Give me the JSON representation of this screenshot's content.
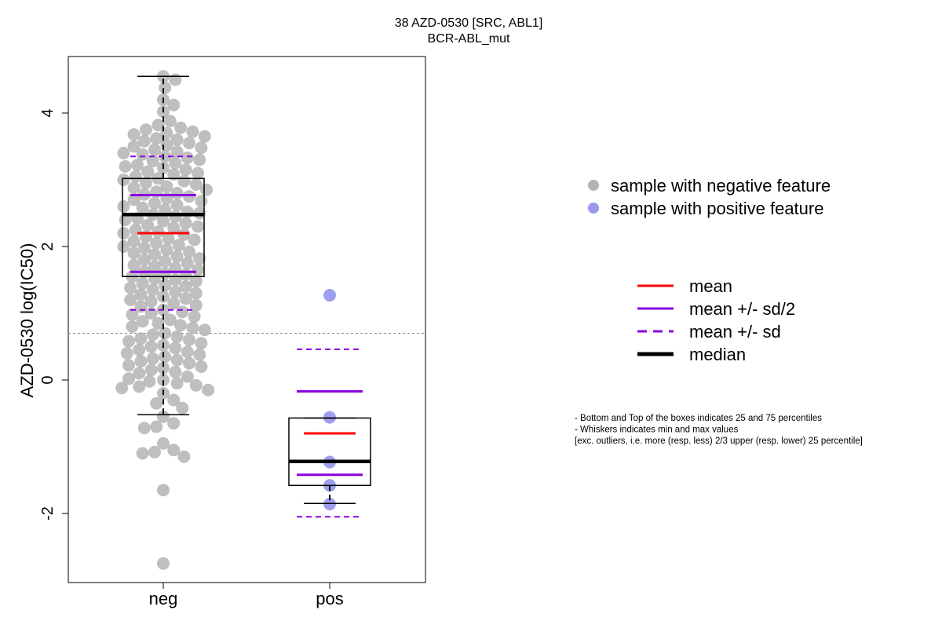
{
  "chart_data": {
    "type": "scatter",
    "title": "38 AZD-0530 [SRC, ABL1]",
    "subtitle": "BCR-ABL_mut",
    "ylabel": "AZD-0530 log(IC50)",
    "xlabel": "",
    "categories": [
      "neg",
      "pos"
    ],
    "ylim": [
      -3.0,
      4.75
    ],
    "yticks": [
      -2,
      0,
      2,
      4
    ],
    "threshold_line": 0.7,
    "grid": false,
    "legend_position": "right",
    "colors": {
      "neg_point": "#b4b4b4",
      "pos_point": "#9999ee",
      "mean": "#ff0000",
      "sd": "#8a00e0",
      "median": "#000000",
      "threshold": "#888888"
    },
    "groups": [
      {
        "name": "neg",
        "stats": {
          "q1": 1.55,
          "q3": 3.02,
          "median": 2.48,
          "mean": 2.2,
          "mean_minus_half_sd": 1.62,
          "mean_plus_half_sd": 2.77,
          "mean_minus_sd": 1.05,
          "mean_plus_sd": 3.35,
          "whisker_low": -0.52,
          "whisker_high": 4.55
        },
        "points": [
          4.55,
          4.5,
          4.38,
          4.2,
          4.12,
          4.02,
          3.88,
          3.82,
          3.78,
          3.75,
          3.72,
          3.7,
          3.68,
          3.65,
          3.62,
          3.6,
          3.58,
          3.55,
          3.52,
          3.5,
          3.48,
          3.45,
          3.42,
          3.4,
          3.38,
          3.35,
          3.33,
          3.3,
          3.28,
          3.25,
          3.22,
          3.2,
          3.18,
          3.15,
          3.12,
          3.1,
          3.08,
          3.05,
          3.02,
          3.0,
          2.98,
          2.95,
          2.93,
          2.9,
          2.88,
          2.85,
          2.82,
          2.8,
          2.78,
          2.75,
          2.72,
          2.7,
          2.68,
          2.65,
          2.62,
          2.6,
          2.58,
          2.55,
          2.52,
          2.5,
          2.48,
          2.45,
          2.42,
          2.4,
          2.38,
          2.35,
          2.32,
          2.3,
          2.28,
          2.25,
          2.22,
          2.2,
          2.18,
          2.15,
          2.12,
          2.1,
          2.08,
          2.05,
          2.02,
          2.0,
          1.98,
          1.95,
          1.92,
          1.9,
          1.88,
          1.85,
          1.82,
          1.8,
          1.78,
          1.75,
          1.72,
          1.7,
          1.68,
          1.65,
          1.62,
          1.6,
          1.58,
          1.55,
          1.52,
          1.5,
          1.48,
          1.45,
          1.42,
          1.4,
          1.38,
          1.35,
          1.32,
          1.3,
          1.28,
          1.25,
          1.22,
          1.2,
          1.18,
          1.15,
          1.12,
          1.1,
          1.05,
          1.02,
          1.0,
          0.98,
          0.95,
          0.9,
          0.88,
          0.85,
          0.82,
          0.8,
          0.78,
          0.75,
          0.7,
          0.68,
          0.65,
          0.62,
          0.6,
          0.58,
          0.55,
          0.52,
          0.5,
          0.48,
          0.45,
          0.42,
          0.4,
          0.38,
          0.35,
          0.32,
          0.3,
          0.28,
          0.25,
          0.22,
          0.2,
          0.18,
          0.15,
          0.12,
          0.1,
          0.05,
          0.02,
          0.0,
          -0.02,
          -0.05,
          -0.08,
          -0.1,
          -0.12,
          -0.15,
          -0.2,
          -0.3,
          -0.35,
          -0.42,
          -0.55,
          -0.65,
          -0.7,
          -0.72,
          -0.95,
          -1.05,
          -1.08,
          -1.1,
          -1.15,
          -1.65,
          -2.75
        ],
        "point_color_key": "neg_point"
      },
      {
        "name": "pos",
        "stats": {
          "q1": -1.58,
          "q3": -0.57,
          "median": -1.22,
          "mean": -0.8,
          "mean_minus_half_sd": -1.42,
          "mean_plus_half_sd": -0.17,
          "mean_minus_sd": -2.05,
          "mean_plus_sd": 0.46,
          "whisker_low": -1.85,
          "whisker_high": -0.57
        },
        "points": [
          1.27,
          -0.56,
          -1.23,
          -1.58,
          -1.86
        ],
        "point_color_key": "pos_point"
      }
    ],
    "legend_points": [
      {
        "label": "sample with negative feature",
        "color_key": "neg_point"
      },
      {
        "label": "sample with positive feature",
        "color_key": "pos_point"
      }
    ],
    "legend_lines": [
      {
        "label": "mean",
        "color_key": "mean",
        "style": "solid",
        "weight": "normal"
      },
      {
        "label": "mean +/- sd/2",
        "color_key": "sd",
        "style": "solid",
        "weight": "normal"
      },
      {
        "label": "mean +/- sd",
        "color_key": "sd",
        "style": "dashed",
        "weight": "normal"
      },
      {
        "label": "median",
        "color_key": "median",
        "style": "solid",
        "weight": "bold"
      }
    ],
    "notes": [
      "- Bottom and Top of the boxes indicates 25 and 75 percentiles",
      "- Whiskers indicates min and max values",
      "[exc. outliers, i.e. more (resp. less) 2/3 upper (resp. lower) 25 percentile]"
    ]
  }
}
